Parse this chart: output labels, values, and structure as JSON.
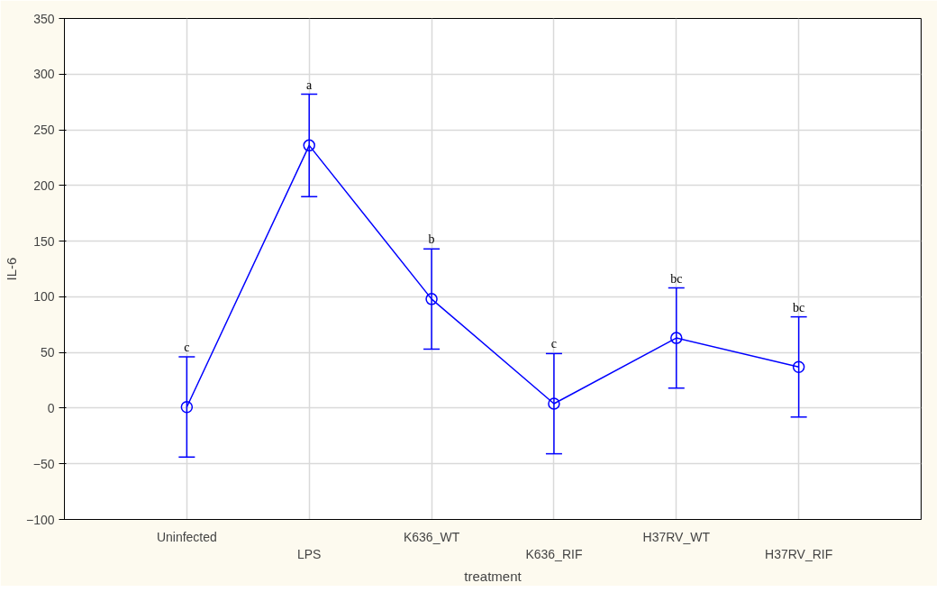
{
  "chart_data": {
    "type": "line",
    "xlabel": "treatment",
    "ylabel": "IL-6",
    "categories": [
      "Uninfected",
      "LPS",
      "K636_WT",
      "K636_RIF",
      "H37RV_WT",
      "H37RV_RIF"
    ],
    "series": [
      {
        "color": "#0000ff",
        "values": [
          1,
          236,
          98,
          4,
          63,
          37
        ],
        "errors": [
          45,
          46,
          45,
          45,
          45,
          45
        ]
      }
    ],
    "ylim": [
      -100,
      350
    ],
    "yticks": [
      -100,
      -50,
      0,
      50,
      100,
      150,
      200,
      250,
      300,
      350
    ],
    "grid": true,
    "marker": "circle",
    "line_style": "solid",
    "annotations": [
      {
        "text": "c",
        "x": "Uninfected",
        "y": 46
      },
      {
        "text": "a",
        "x": "LPS",
        "y": 282
      },
      {
        "text": "b",
        "x": "K636_WT",
        "y": 143
      },
      {
        "text": "c",
        "x": "K636_RIF",
        "y": 49
      },
      {
        "text": "bc",
        "x": "H37RV_WT",
        "y": 108
      },
      {
        "text": "bc",
        "x": "H37RV_RIF",
        "y": 82
      }
    ]
  }
}
